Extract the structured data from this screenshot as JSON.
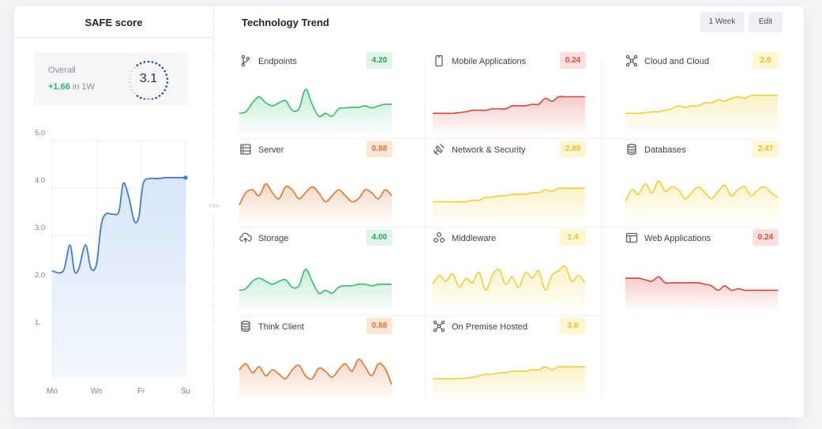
{
  "safe_panel": {
    "title": "SAFE score",
    "overall_label": "Overall",
    "delta": "+1.66",
    "delta_suffix": "in 1W",
    "score": "3.1",
    "gauge_fraction": 0.62,
    "colors": {
      "up": "#2cb56a",
      "line": "#3f7bd6",
      "area": "#e4eefb"
    }
  },
  "chart_data": {
    "type": "area",
    "categories": [
      "Mo",
      "We",
      "Fr",
      "Su"
    ],
    "y_ticks": [
      "5.0",
      "4.0",
      "3.0",
      "2.0",
      "1."
    ],
    "ylim": [
      0,
      5
    ],
    "x": [
      0,
      0.5,
      0.8,
      1.0,
      1.2,
      1.5,
      1.75,
      2.0,
      2.2,
      2.4,
      2.7,
      3.0,
      3.2,
      3.45,
      3.7,
      3.9,
      4.1,
      4.4,
      4.6,
      4.8,
      5.05,
      5.2,
      5.6,
      6.0
    ],
    "values": [
      2.25,
      2.25,
      2.8,
      2.25,
      2.3,
      2.8,
      2.3,
      2.4,
      3.2,
      3.45,
      3.45,
      3.5,
      4.1,
      3.8,
      3.3,
      3.4,
      4.1,
      4.2,
      4.2,
      4.2,
      4.22,
      4.22,
      4.22,
      4.22
    ]
  },
  "trend_panel": {
    "title": "Technology Trend",
    "week_button": "1 Week",
    "edit_button": "Edit"
  },
  "tiles": [
    {
      "label": "Endpoints",
      "value": "4.20",
      "status": "green",
      "icon": "branch-icon",
      "series": [
        0.2,
        0.25,
        0.55,
        0.75,
        0.55,
        0.45,
        0.55,
        0.62,
        0.3,
        0.35,
        1.0,
        0.5,
        0.1,
        0.2,
        0.1,
        0.35,
        0.38,
        0.4,
        0.4,
        0.45,
        0.38,
        0.45,
        0.5,
        0.5
      ]
    },
    {
      "label": "Mobile Applications",
      "value": "0.24",
      "status": "red",
      "icon": "phone-icon",
      "series": [
        0.2,
        0.2,
        0.2,
        0.2,
        0.22,
        0.25,
        0.3,
        0.3,
        0.3,
        0.35,
        0.35,
        0.35,
        0.45,
        0.45,
        0.45,
        0.5,
        0.5,
        0.7,
        0.6,
        0.75,
        0.75,
        0.75,
        0.75,
        0.75
      ]
    },
    {
      "label": "Cloud and Cloud",
      "value": "2.9",
      "status": "yellow",
      "icon": "nodes-icon",
      "series": [
        0.2,
        0.2,
        0.2,
        0.22,
        0.25,
        0.25,
        0.3,
        0.35,
        0.45,
        0.4,
        0.45,
        0.45,
        0.55,
        0.55,
        0.65,
        0.6,
        0.7,
        0.75,
        0.7,
        0.8,
        0.8,
        0.8,
        0.8,
        0.8
      ]
    },
    {
      "label": "Server",
      "value": "0.88",
      "status": "orange",
      "icon": "server-icon",
      "series": [
        0.1,
        0.5,
        0.6,
        0.4,
        0.8,
        0.5,
        0.3,
        0.7,
        0.6,
        0.3,
        0.5,
        0.7,
        0.5,
        0.2,
        0.4,
        0.6,
        0.4,
        0.2,
        0.3,
        0.6,
        0.5,
        0.3,
        0.6,
        0.4
      ]
    },
    {
      "label": "Network & Security",
      "value": "2.88",
      "status": "yellow",
      "icon": "satellite-icon",
      "series": [
        0.2,
        0.2,
        0.2,
        0.2,
        0.2,
        0.2,
        0.25,
        0.25,
        0.35,
        0.35,
        0.4,
        0.4,
        0.45,
        0.45,
        0.45,
        0.5,
        0.5,
        0.6,
        0.55,
        0.65,
        0.65,
        0.65,
        0.65,
        0.65
      ]
    },
    {
      "label": "Databases",
      "value": "2.47",
      "status": "yellow",
      "icon": "database-icon",
      "series": [
        0.2,
        0.6,
        0.45,
        0.8,
        0.5,
        0.9,
        0.55,
        0.7,
        0.6,
        0.3,
        0.5,
        0.7,
        0.5,
        0.3,
        0.55,
        0.75,
        0.4,
        0.6,
        0.7,
        0.4,
        0.6,
        0.7,
        0.5,
        0.35
      ]
    },
    {
      "label": "Storage",
      "value": "4.00",
      "status": "green",
      "icon": "cloud-upload-icon",
      "series": [
        0.2,
        0.25,
        0.5,
        0.6,
        0.5,
        0.4,
        0.5,
        0.55,
        0.3,
        0.35,
        0.9,
        0.5,
        0.1,
        0.2,
        0.1,
        0.3,
        0.35,
        0.35,
        0.4,
        0.4,
        0.35,
        0.4,
        0.4,
        0.4
      ]
    },
    {
      "label": "Middleware",
      "value": "1.4",
      "status": "yellow",
      "icon": "molecule-icon",
      "series": [
        0.4,
        0.7,
        0.5,
        0.75,
        0.3,
        0.6,
        0.45,
        0.8,
        0.2,
        0.7,
        0.9,
        0.4,
        0.65,
        0.3,
        0.8,
        0.6,
        0.85,
        0.2,
        0.7,
        0.85,
        1.0,
        0.5,
        0.7,
        0.45
      ]
    },
    {
      "label": "Web Applications",
      "value": "0.24",
      "status": "red",
      "icon": "browser-icon",
      "series": [
        0.6,
        0.6,
        0.6,
        0.55,
        0.5,
        0.65,
        0.45,
        0.45,
        0.45,
        0.45,
        0.45,
        0.45,
        0.4,
        0.35,
        0.2,
        0.35,
        0.2,
        0.25,
        0.2,
        0.2,
        0.2,
        0.2,
        0.2,
        0.2
      ]
    },
    {
      "label": "Think Client",
      "value": "0.88",
      "status": "orange",
      "icon": "database-icon",
      "series": [
        0.5,
        0.7,
        0.4,
        0.6,
        0.3,
        0.5,
        0.35,
        0.2,
        0.5,
        0.65,
        0.3,
        0.2,
        0.55,
        0.45,
        0.25,
        0.5,
        0.7,
        0.45,
        0.85,
        0.6,
        0.3,
        0.7,
        0.55,
        0.0
      ]
    },
    {
      "label": "On Premise Hosted",
      "value": "3.0",
      "status": "yellow",
      "icon": "nodes-icon",
      "series": [
        0.2,
        0.2,
        0.2,
        0.2,
        0.2,
        0.22,
        0.25,
        0.3,
        0.35,
        0.35,
        0.4,
        0.4,
        0.45,
        0.45,
        0.45,
        0.5,
        0.5,
        0.6,
        0.5,
        0.6,
        0.6,
        0.6,
        0.6,
        0.6
      ]
    }
  ],
  "status_colors": {
    "green": "#2fbf6b",
    "red": "#e0453b",
    "yellow": "#f0cf33",
    "orange": "#e0742c"
  }
}
